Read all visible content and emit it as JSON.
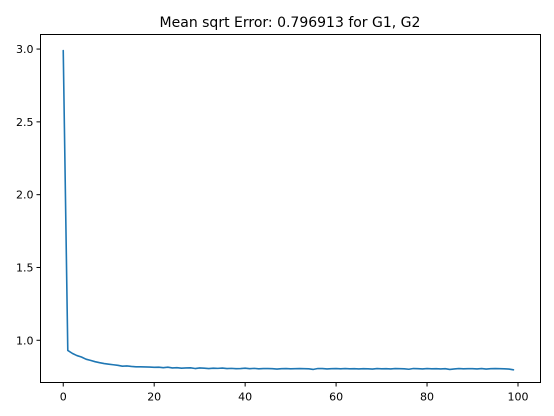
{
  "chart_data": {
    "type": "line",
    "title": "Mean sqrt Error: 0.796913 for G1, G2",
    "xlabel": "",
    "ylabel": "",
    "xlim": [
      -5,
      104.95
    ],
    "ylim": [
      0.71,
      3.1
    ],
    "xticks": [
      0,
      20,
      40,
      60,
      80,
      100
    ],
    "xtick_labels": [
      "0",
      "20",
      "40",
      "60",
      "80",
      "100"
    ],
    "yticks": [
      1.0,
      1.5,
      2.0,
      2.5,
      3.0
    ],
    "ytick_labels": [
      "1.0",
      "1.5",
      "2.0",
      "2.5",
      "3.0"
    ],
    "grid": false,
    "series": [
      {
        "color": "#1f77b4",
        "x": [
          0,
          1,
          2,
          3,
          4,
          5,
          6,
          7,
          8,
          9,
          10,
          11,
          12,
          13,
          14,
          15,
          16,
          17,
          18,
          19,
          20,
          21,
          22,
          23,
          24,
          25,
          26,
          27,
          28,
          29,
          30,
          31,
          32,
          33,
          34,
          35,
          36,
          37,
          38,
          39,
          40,
          41,
          42,
          43,
          44,
          45,
          46,
          47,
          48,
          49,
          50,
          51,
          52,
          53,
          54,
          55,
          56,
          57,
          58,
          59,
          60,
          61,
          62,
          63,
          64,
          65,
          66,
          67,
          68,
          69,
          70,
          71,
          72,
          73,
          74,
          75,
          76,
          77,
          78,
          79,
          80,
          81,
          82,
          83,
          84,
          85,
          86,
          87,
          88,
          89,
          90,
          91,
          92,
          93,
          94,
          95,
          96,
          97,
          98,
          99
        ],
        "y": [
          2.99,
          0.93,
          0.91,
          0.895,
          0.885,
          0.87,
          0.862,
          0.853,
          0.846,
          0.84,
          0.836,
          0.832,
          0.828,
          0.822,
          0.824,
          0.82,
          0.818,
          0.818,
          0.817,
          0.816,
          0.814,
          0.815,
          0.812,
          0.815,
          0.81,
          0.812,
          0.808,
          0.81,
          0.811,
          0.806,
          0.81,
          0.808,
          0.806,
          0.808,
          0.807,
          0.809,
          0.806,
          0.807,
          0.805,
          0.806,
          0.808,
          0.805,
          0.807,
          0.804,
          0.806,
          0.806,
          0.805,
          0.802,
          0.805,
          0.806,
          0.804,
          0.805,
          0.806,
          0.805,
          0.804,
          0.8,
          0.806,
          0.806,
          0.803,
          0.805,
          0.806,
          0.804,
          0.806,
          0.804,
          0.805,
          0.803,
          0.805,
          0.804,
          0.802,
          0.806,
          0.804,
          0.805,
          0.803,
          0.806,
          0.805,
          0.804,
          0.801,
          0.806,
          0.805,
          0.803,
          0.806,
          0.804,
          0.805,
          0.803,
          0.805,
          0.8,
          0.803,
          0.806,
          0.804,
          0.805,
          0.805,
          0.803,
          0.806,
          0.802,
          0.805,
          0.806,
          0.805,
          0.804,
          0.802,
          0.797
        ]
      }
    ]
  }
}
